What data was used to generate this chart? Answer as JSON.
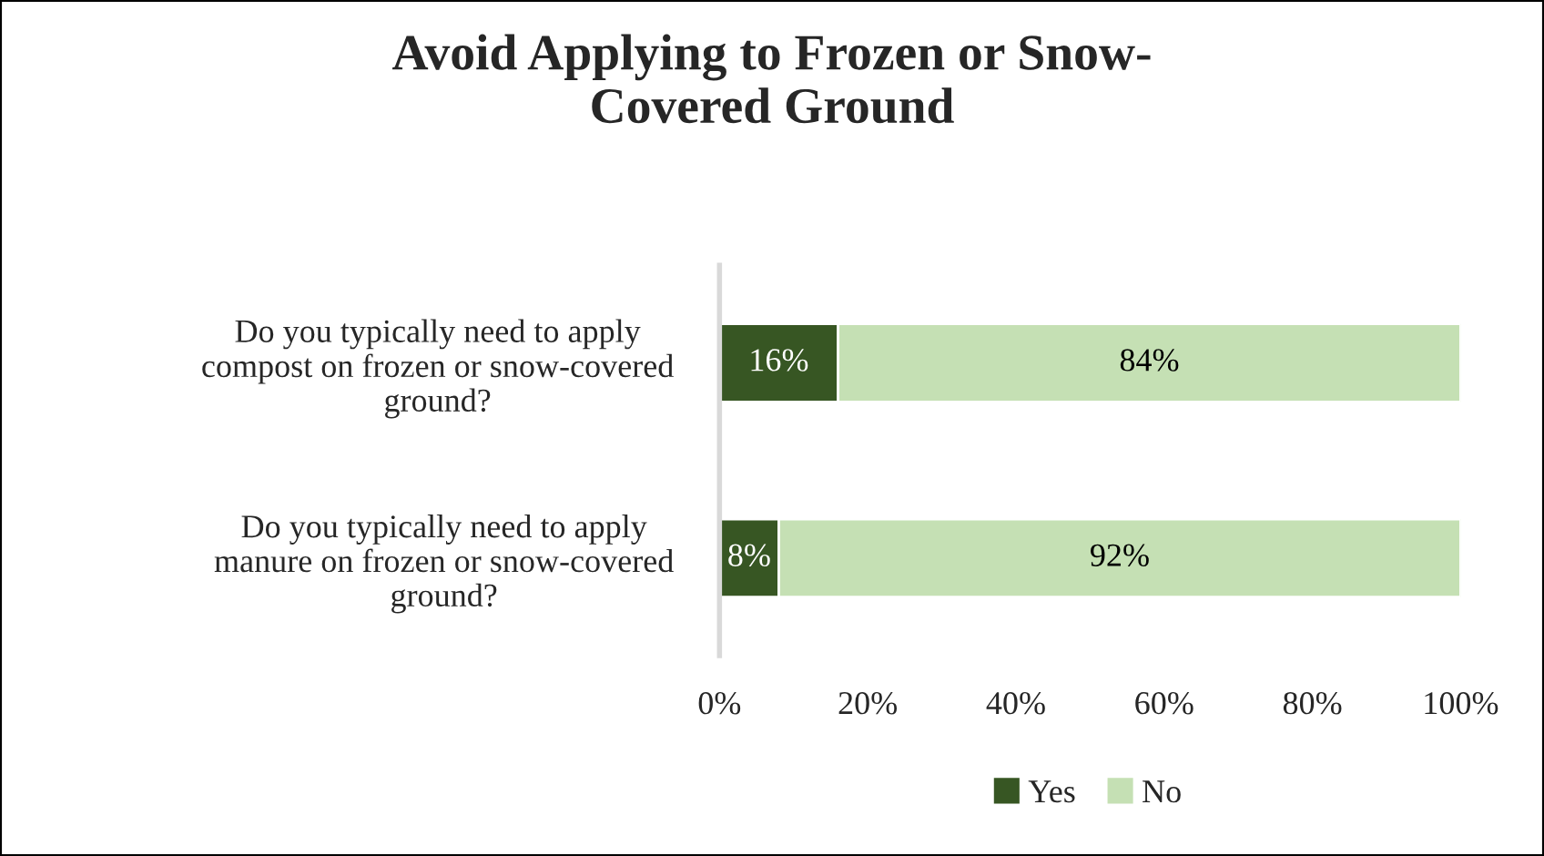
{
  "chart_data": {
    "type": "bar",
    "orientation": "horizontal",
    "stacked": true,
    "title": "Avoid Applying to Frozen or Snow-\nCovered Ground",
    "categories": [
      "Do you typically need to apply\ncompost on frozen or snow-covered\nground?",
      "Do you typically need to apply\nmanure on frozen or snow-covered\nground?"
    ],
    "series": [
      {
        "name": "Yes",
        "color": "#375623",
        "values": [
          16,
          8
        ],
        "value_labels": [
          "16%",
          "8%"
        ]
      },
      {
        "name": "No",
        "color": "#c5e0b4",
        "values": [
          84,
          92
        ],
        "value_labels": [
          "84%",
          "92%"
        ]
      }
    ],
    "xlim": [
      0,
      100
    ],
    "xticks": [
      {
        "value": 0,
        "label": "0%"
      },
      {
        "value": 20,
        "label": "20%"
      },
      {
        "value": 40,
        "label": "40%"
      },
      {
        "value": 60,
        "label": "60%"
      },
      {
        "value": 80,
        "label": "80%"
      },
      {
        "value": 100,
        "label": "100%"
      }
    ],
    "grid": false,
    "legend": "bottom"
  }
}
